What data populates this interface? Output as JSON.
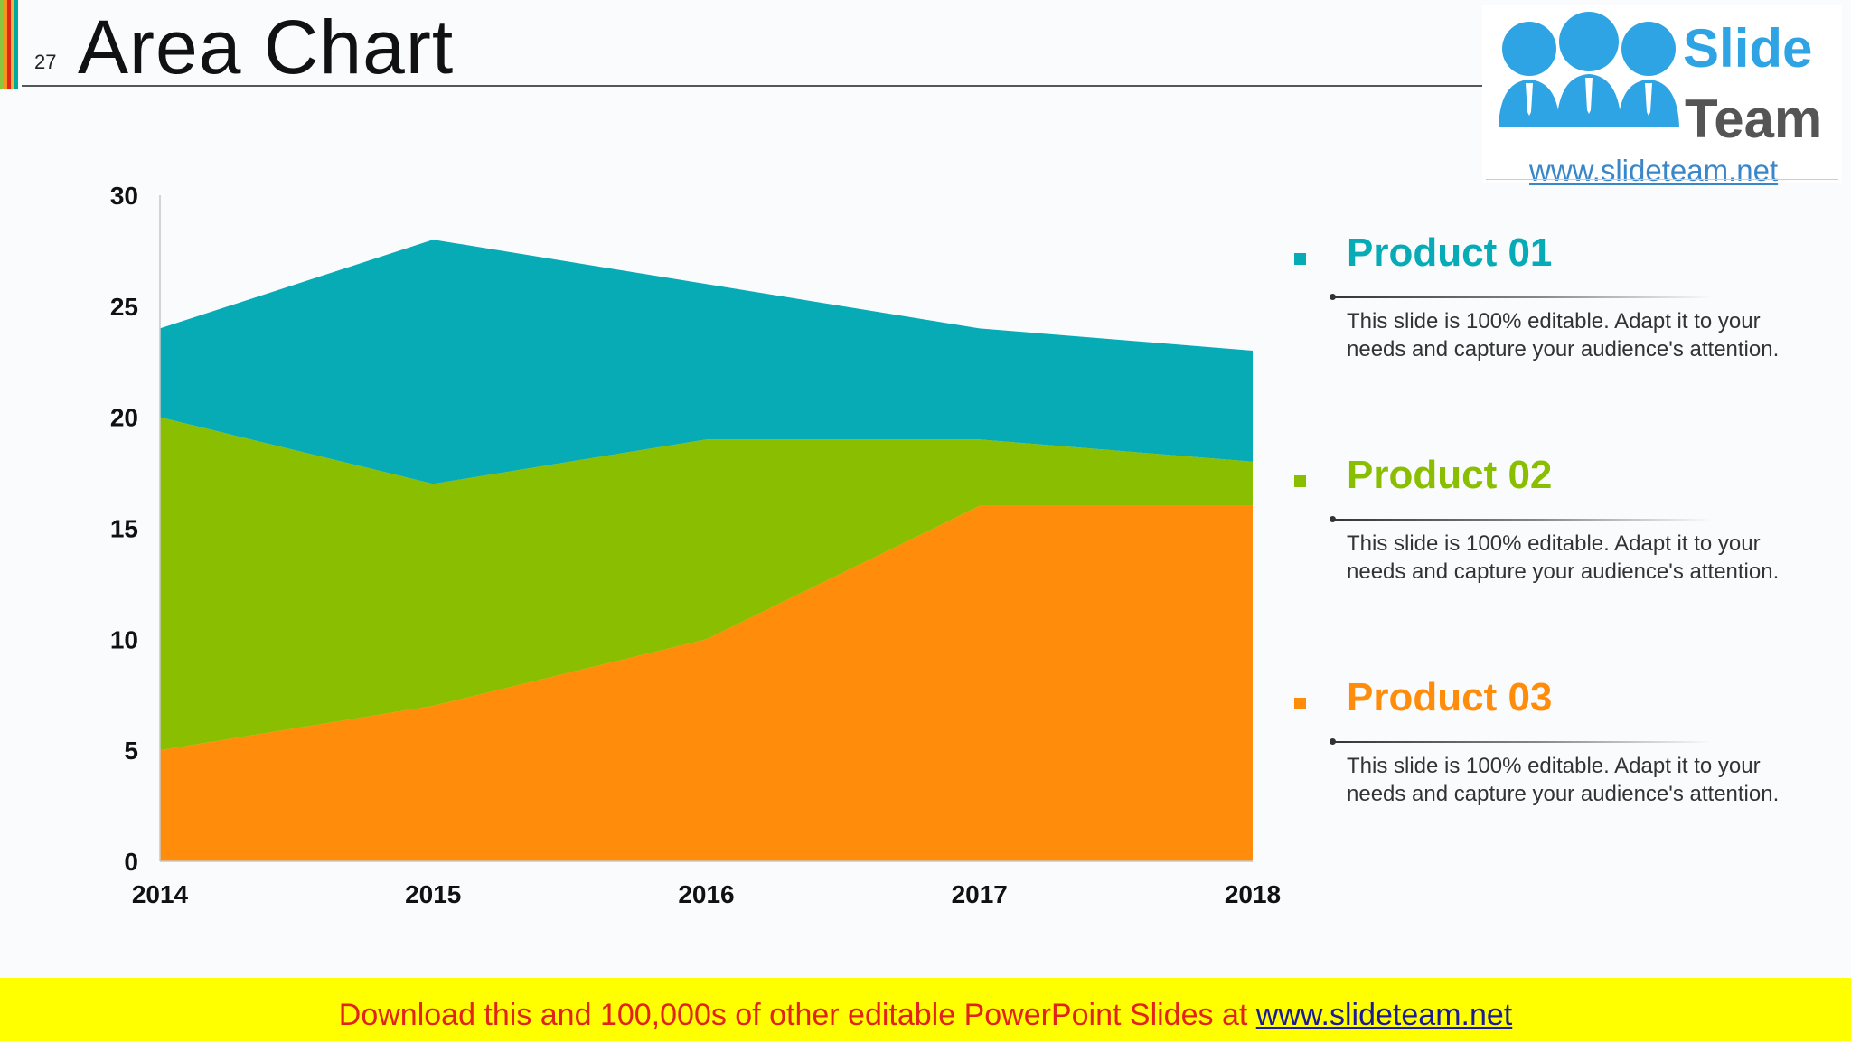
{
  "header": {
    "slide_number": "27",
    "title": "Area Chart",
    "stripe_colors": [
      "#8cc63f",
      "#f7941d",
      "#e2231a",
      "#fbb040",
      "#00a99d"
    ]
  },
  "logo": {
    "word1": "Slide",
    "word2": "Team",
    "url": "www.slideteam.net",
    "colors": {
      "figures": "#2fa4e4",
      "slide": "#2fa4e4",
      "team": "#555555"
    }
  },
  "chart_data": {
    "type": "area",
    "stacked": true,
    "categories": [
      "2014",
      "2015",
      "2016",
      "2017",
      "2018"
    ],
    "series": [
      {
        "name": "Product 03",
        "values": [
          5,
          7,
          10,
          16,
          16
        ],
        "color": "#ff8c0a"
      },
      {
        "name": "Product 02",
        "values": [
          15,
          10,
          9,
          3,
          2
        ],
        "color": "#89bf00"
      },
      {
        "name": "Product 01",
        "values": [
          4,
          11,
          7,
          5,
          5
        ],
        "color": "#07abb6"
      }
    ],
    "ylim": [
      0,
      30
    ],
    "yticks": [
      "0",
      "5",
      "10",
      "15",
      "20",
      "25",
      "30"
    ],
    "grid": false,
    "legend": "right"
  },
  "legend": [
    {
      "name": "Product 01",
      "color": "#07abb6",
      "desc": "This slide is 100% editable. Adapt it to your needs and capture your audience's attention."
    },
    {
      "name": "Product 02",
      "color": "#89bf00",
      "desc": "This slide is 100% editable. Adapt it to your needs and capture your audience's attention."
    },
    {
      "name": "Product 03",
      "color": "#ff8c0a",
      "desc": "This slide is 100% editable. Adapt it to your needs and capture your audience's attention."
    }
  ],
  "footer": {
    "text": "Download this and 100,000s of other editable PowerPoint Slides at ",
    "link": "www.slideteam.net",
    "colors": {
      "background": "#ffff00",
      "text": "#e2231a",
      "link": "#1b1b9a"
    }
  }
}
